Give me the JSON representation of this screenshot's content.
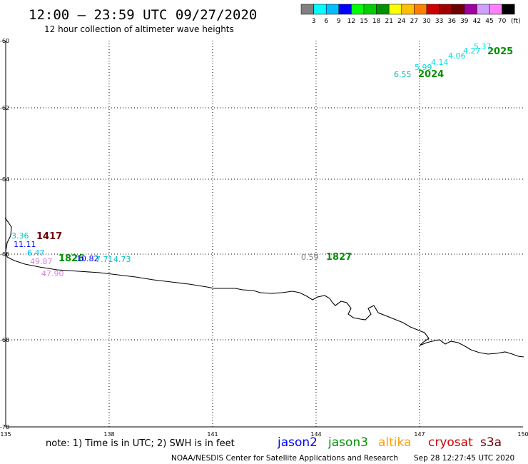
{
  "header": {
    "title": "12:00 – 23:59 UTC 09/27/2020",
    "subtitle": "12 hour collection of altimeter wave heights"
  },
  "legend": {
    "colors": [
      "#808080",
      "#00ffff",
      "#00bfff",
      "#0000ff",
      "#00ff00",
      "#00d000",
      "#009000",
      "#ffff00",
      "#ffc000",
      "#ff8000",
      "#d00000",
      "#a00000",
      "#700000",
      "#a000a0",
      "#d0a0ff",
      "#ff80ff",
      "#000000"
    ],
    "labels": [
      "3",
      "6",
      "9",
      "12",
      "15",
      "18",
      "21",
      "24",
      "27",
      "30",
      "33",
      "36",
      "39",
      "42",
      "45",
      "70"
    ],
    "unit": "(ft)"
  },
  "axes": {
    "x_ticks": [
      "135",
      "138",
      "141",
      "144",
      "147",
      "150"
    ],
    "y_ticks": [
      "-60",
      "-62",
      "-64",
      "-66",
      "-68",
      "-70"
    ]
  },
  "tracks": [
    {
      "time": "2025",
      "color": "#009000"
    },
    {
      "time": "2024",
      "color": "#009000"
    },
    {
      "time": "1417",
      "color": "#700000"
    },
    {
      "time": "1826",
      "color": "#009000"
    },
    {
      "time": "1827",
      "color": "#009000"
    }
  ],
  "observations": [
    {
      "value": "5.37",
      "color": "#00e0e0"
    },
    {
      "value": "4.27",
      "color": "#00e0e0"
    },
    {
      "value": "4.06",
      "color": "#00e0e0"
    },
    {
      "value": "4.14",
      "color": "#00e0e0"
    },
    {
      "value": "5.99",
      "color": "#00e0e0"
    },
    {
      "value": "6.55",
      "color": "#00c0c0"
    },
    {
      "value": "3.36",
      "color": "#00c0c0"
    },
    {
      "value": "11.11",
      "color": "#0000ff"
    },
    {
      "value": "6.47",
      "color": "#00bfff"
    },
    {
      "value": "10.82",
      "color": "#0000ff"
    },
    {
      "value": "7.71",
      "color": "#00c0c0"
    },
    {
      "value": "4.73",
      "color": "#00c0c0"
    },
    {
      "value": "49.87",
      "color": "#e080e0"
    },
    {
      "value": "47.90",
      "color": "#e080e0"
    },
    {
      "value": "0.59",
      "color": "#808080"
    }
  ],
  "footer": {
    "note": "note: 1) Time is in UTC; 2) SWH is in feet",
    "satellites": [
      {
        "name": "jason2",
        "color": "#0000ff"
      },
      {
        "name": "jason3",
        "color": "#009000"
      },
      {
        "name": "altika",
        "color": "#ffa000"
      },
      {
        "name": "cryosat",
        "color": "#d00000"
      },
      {
        "name": "s3a",
        "color": "#700000"
      }
    ],
    "credit": "NOAA/NESDIS Center for Satellite Applications and Research",
    "timestamp": "Sep 28 12:27:45 UTC 2020"
  }
}
